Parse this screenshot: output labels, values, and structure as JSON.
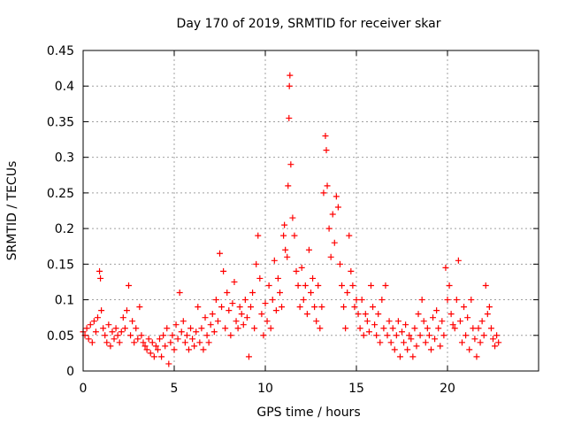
{
  "chart_data": {
    "type": "scatter",
    "title": "Day 170 of 2019, SRMTID for receiver skar",
    "xlabel": "GPS time / hours",
    "ylabel": "SRMTID / TECUs",
    "xlim": [
      0,
      25
    ],
    "ylim": [
      0,
      0.45
    ],
    "x_ticks": [
      0,
      5,
      10,
      15,
      20
    ],
    "x_tick_labels": [
      "0",
      "5",
      "10",
      "15",
      "20"
    ],
    "y_ticks": [
      0,
      0.05,
      0.1,
      0.15,
      0.2,
      0.25,
      0.3,
      0.35,
      0.4,
      0.45
    ],
    "y_tick_labels": [
      "0",
      "0.05",
      "0.1",
      "0.15",
      "0.2",
      "0.25",
      "0.3",
      "0.35",
      "0.4",
      "0.45"
    ],
    "grid": true,
    "marker": "+",
    "series": [
      {
        "name": "SRMTID",
        "color": "#ff0000",
        "points": [
          [
            0.0,
            0.055
          ],
          [
            0.1,
            0.05
          ],
          [
            0.2,
            0.06
          ],
          [
            0.3,
            0.045
          ],
          [
            0.4,
            0.065
          ],
          [
            0.5,
            0.04
          ],
          [
            0.6,
            0.07
          ],
          [
            0.7,
            0.055
          ],
          [
            0.8,
            0.075
          ],
          [
            0.9,
            0.14
          ],
          [
            0.95,
            0.13
          ],
          [
            1.0,
            0.085
          ],
          [
            1.1,
            0.06
          ],
          [
            1.2,
            0.05
          ],
          [
            1.3,
            0.04
          ],
          [
            1.4,
            0.065
          ],
          [
            1.5,
            0.035
          ],
          [
            1.6,
            0.055
          ],
          [
            1.7,
            0.045
          ],
          [
            1.8,
            0.06
          ],
          [
            1.9,
            0.05
          ],
          [
            2.0,
            0.04
          ],
          [
            2.1,
            0.055
          ],
          [
            2.2,
            0.075
          ],
          [
            2.3,
            0.06
          ],
          [
            2.4,
            0.085
          ],
          [
            2.5,
            0.12
          ],
          [
            2.6,
            0.05
          ],
          [
            2.7,
            0.07
          ],
          [
            2.8,
            0.04
          ],
          [
            2.9,
            0.06
          ],
          [
            3.0,
            0.045
          ],
          [
            3.1,
            0.09
          ],
          [
            3.2,
            0.05
          ],
          [
            3.3,
            0.04
          ],
          [
            3.4,
            0.035
          ],
          [
            3.5,
            0.03
          ],
          [
            3.6,
            0.045
          ],
          [
            3.7,
            0.025
          ],
          [
            3.8,
            0.04
          ],
          [
            3.9,
            0.02
          ],
          [
            4.0,
            0.035
          ],
          [
            4.1,
            0.03
          ],
          [
            4.2,
            0.045
          ],
          [
            4.3,
            0.02
          ],
          [
            4.4,
            0.05
          ],
          [
            4.5,
            0.035
          ],
          [
            4.6,
            0.06
          ],
          [
            4.7,
            0.01
          ],
          [
            4.8,
            0.04
          ],
          [
            4.9,
            0.05
          ],
          [
            5.0,
            0.03
          ],
          [
            5.1,
            0.065
          ],
          [
            5.2,
            0.045
          ],
          [
            5.3,
            0.11
          ],
          [
            5.4,
            0.055
          ],
          [
            5.5,
            0.07
          ],
          [
            5.6,
            0.04
          ],
          [
            5.7,
            0.05
          ],
          [
            5.8,
            0.03
          ],
          [
            5.9,
            0.06
          ],
          [
            6.0,
            0.045
          ],
          [
            6.1,
            0.035
          ],
          [
            6.2,
            0.055
          ],
          [
            6.3,
            0.09
          ],
          [
            6.4,
            0.04
          ],
          [
            6.5,
            0.06
          ],
          [
            6.6,
            0.03
          ],
          [
            6.7,
            0.075
          ],
          [
            6.8,
            0.05
          ],
          [
            6.9,
            0.04
          ],
          [
            7.0,
            0.065
          ],
          [
            7.1,
            0.08
          ],
          [
            7.2,
            0.055
          ],
          [
            7.3,
            0.1
          ],
          [
            7.4,
            0.07
          ],
          [
            7.5,
            0.165
          ],
          [
            7.6,
            0.09
          ],
          [
            7.7,
            0.14
          ],
          [
            7.8,
            0.06
          ],
          [
            7.9,
            0.11
          ],
          [
            8.0,
            0.085
          ],
          [
            8.1,
            0.05
          ],
          [
            8.2,
            0.095
          ],
          [
            8.3,
            0.125
          ],
          [
            8.4,
            0.07
          ],
          [
            8.5,
            0.06
          ],
          [
            8.6,
            0.09
          ],
          [
            8.7,
            0.08
          ],
          [
            8.8,
            0.065
          ],
          [
            8.9,
            0.1
          ],
          [
            9.0,
            0.075
          ],
          [
            9.1,
            0.02
          ],
          [
            9.2,
            0.09
          ],
          [
            9.3,
            0.11
          ],
          [
            9.4,
            0.06
          ],
          [
            9.5,
            0.15
          ],
          [
            9.6,
            0.19
          ],
          [
            9.7,
            0.13
          ],
          [
            9.8,
            0.08
          ],
          [
            9.9,
            0.05
          ],
          [
            10.0,
            0.095
          ],
          [
            10.1,
            0.07
          ],
          [
            10.2,
            0.12
          ],
          [
            10.3,
            0.06
          ],
          [
            10.4,
            0.1
          ],
          [
            10.5,
            0.155
          ],
          [
            10.6,
            0.085
          ],
          [
            10.7,
            0.13
          ],
          [
            10.8,
            0.11
          ],
          [
            10.9,
            0.09
          ],
          [
            11.0,
            0.19
          ],
          [
            11.05,
            0.205
          ],
          [
            11.1,
            0.17
          ],
          [
            11.2,
            0.16
          ],
          [
            11.25,
            0.26
          ],
          [
            11.3,
            0.355
          ],
          [
            11.32,
            0.4
          ],
          [
            11.35,
            0.415
          ],
          [
            11.4,
            0.29
          ],
          [
            11.5,
            0.215
          ],
          [
            11.6,
            0.19
          ],
          [
            11.7,
            0.14
          ],
          [
            11.8,
            0.12
          ],
          [
            11.9,
            0.09
          ],
          [
            12.0,
            0.145
          ],
          [
            12.1,
            0.1
          ],
          [
            12.2,
            0.12
          ],
          [
            12.3,
            0.08
          ],
          [
            12.4,
            0.17
          ],
          [
            12.5,
            0.11
          ],
          [
            12.6,
            0.13
          ],
          [
            12.7,
            0.09
          ],
          [
            12.8,
            0.07
          ],
          [
            12.9,
            0.12
          ],
          [
            13.0,
            0.06
          ],
          [
            13.1,
            0.09
          ],
          [
            13.2,
            0.25
          ],
          [
            13.3,
            0.33
          ],
          [
            13.35,
            0.31
          ],
          [
            13.4,
            0.26
          ],
          [
            13.5,
            0.2
          ],
          [
            13.6,
            0.16
          ],
          [
            13.7,
            0.22
          ],
          [
            13.8,
            0.18
          ],
          [
            13.9,
            0.245
          ],
          [
            14.0,
            0.23
          ],
          [
            14.1,
            0.15
          ],
          [
            14.2,
            0.12
          ],
          [
            14.3,
            0.09
          ],
          [
            14.4,
            0.06
          ],
          [
            14.5,
            0.11
          ],
          [
            14.6,
            0.19
          ],
          [
            14.7,
            0.14
          ],
          [
            14.8,
            0.12
          ],
          [
            14.9,
            0.09
          ],
          [
            15.0,
            0.1
          ],
          [
            15.1,
            0.08
          ],
          [
            15.2,
            0.06
          ],
          [
            15.3,
            0.1
          ],
          [
            15.4,
            0.05
          ],
          [
            15.5,
            0.08
          ],
          [
            15.6,
            0.07
          ],
          [
            15.7,
            0.055
          ],
          [
            15.8,
            0.12
          ],
          [
            15.9,
            0.09
          ],
          [
            16.0,
            0.065
          ],
          [
            16.1,
            0.05
          ],
          [
            16.2,
            0.08
          ],
          [
            16.3,
            0.04
          ],
          [
            16.4,
            0.1
          ],
          [
            16.5,
            0.06
          ],
          [
            16.6,
            0.12
          ],
          [
            16.7,
            0.05
          ],
          [
            16.8,
            0.07
          ],
          [
            16.9,
            0.04
          ],
          [
            17.0,
            0.06
          ],
          [
            17.1,
            0.03
          ],
          [
            17.2,
            0.05
          ],
          [
            17.3,
            0.07
          ],
          [
            17.4,
            0.02
          ],
          [
            17.5,
            0.055
          ],
          [
            17.6,
            0.04
          ],
          [
            17.7,
            0.065
          ],
          [
            17.8,
            0.03
          ],
          [
            17.9,
            0.05
          ],
          [
            18.0,
            0.045
          ],
          [
            18.1,
            0.02
          ],
          [
            18.2,
            0.06
          ],
          [
            18.3,
            0.035
          ],
          [
            18.4,
            0.08
          ],
          [
            18.5,
            0.05
          ],
          [
            18.6,
            0.1
          ],
          [
            18.7,
            0.07
          ],
          [
            18.8,
            0.04
          ],
          [
            18.9,
            0.06
          ],
          [
            19.0,
            0.05
          ],
          [
            19.1,
            0.03
          ],
          [
            19.2,
            0.075
          ],
          [
            19.3,
            0.045
          ],
          [
            19.4,
            0.085
          ],
          [
            19.5,
            0.06
          ],
          [
            19.6,
            0.035
          ],
          [
            19.7,
            0.07
          ],
          [
            19.8,
            0.05
          ],
          [
            19.9,
            0.145
          ],
          [
            20.0,
            0.1
          ],
          [
            20.1,
            0.12
          ],
          [
            20.2,
            0.08
          ],
          [
            20.3,
            0.065
          ],
          [
            20.4,
            0.06
          ],
          [
            20.5,
            0.1
          ],
          [
            20.6,
            0.155
          ],
          [
            20.7,
            0.07
          ],
          [
            20.8,
            0.04
          ],
          [
            20.9,
            0.09
          ],
          [
            21.0,
            0.05
          ],
          [
            21.1,
            0.075
          ],
          [
            21.2,
            0.03
          ],
          [
            21.3,
            0.1
          ],
          [
            21.4,
            0.06
          ],
          [
            21.5,
            0.045
          ],
          [
            21.6,
            0.02
          ],
          [
            21.7,
            0.06
          ],
          [
            21.8,
            0.04
          ],
          [
            21.9,
            0.07
          ],
          [
            22.0,
            0.05
          ],
          [
            22.1,
            0.12
          ],
          [
            22.2,
            0.08
          ],
          [
            22.3,
            0.09
          ],
          [
            22.4,
            0.06
          ],
          [
            22.5,
            0.045
          ],
          [
            22.6,
            0.035
          ],
          [
            22.7,
            0.05
          ],
          [
            22.8,
            0.04
          ]
        ]
      }
    ]
  }
}
